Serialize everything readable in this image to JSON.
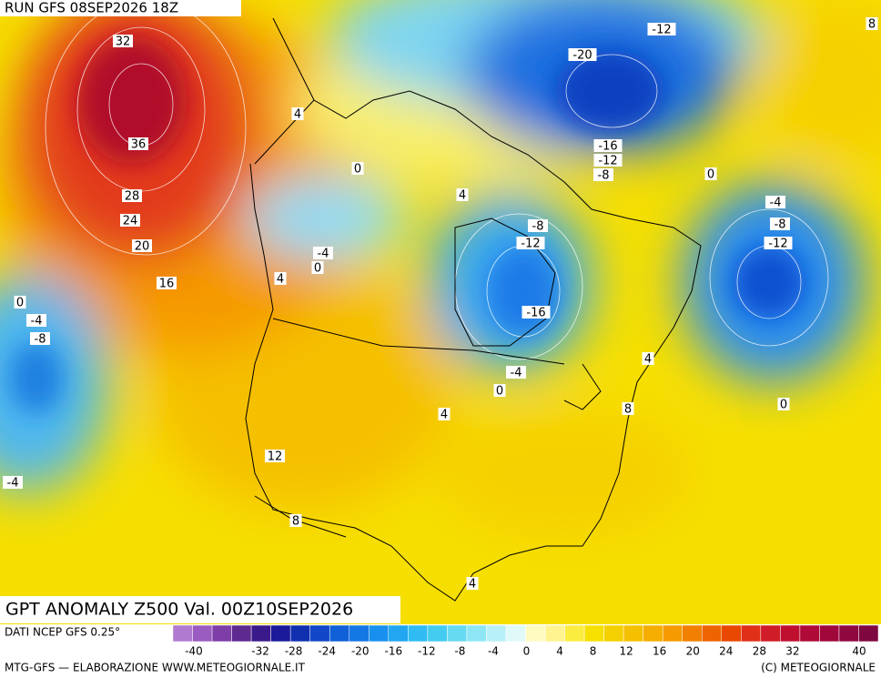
{
  "header": {
    "run": "RUN GFS 08SEP2026 18Z"
  },
  "title": "GPT ANOMALY Z500 Val. 00Z10SEP2026",
  "source": "DATI NCEP GFS 0.25°",
  "colorbar": {
    "labels": [
      -40,
      -32,
      -28,
      -24,
      -20,
      -16,
      -12,
      -8,
      -4,
      0,
      4,
      8,
      12,
      16,
      20,
      24,
      28,
      32,
      40
    ]
  },
  "footer": {
    "left": "MTG-GFS — ELABORAZIONE WWW.METEOGIORNALE.IT",
    "right": "(C) METEOGIORNALE"
  },
  "contour_labels": [
    32,
    36,
    28,
    24,
    20,
    16,
    4,
    0,
    4,
    -4,
    0,
    4,
    0,
    -4,
    -8,
    -4,
    -20,
    -12,
    8,
    -16,
    -12,
    -8,
    0,
    -8,
    -12,
    -16,
    -4,
    0,
    -4,
    -8,
    -12,
    4,
    8,
    0,
    4,
    12,
    8,
    4
  ]
}
